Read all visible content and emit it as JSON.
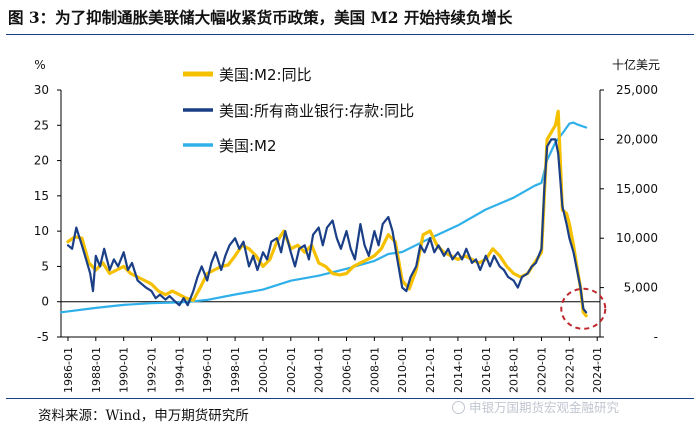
{
  "figure": {
    "title": "图 3：为了抑制通胀美联储大幅收紧货币政策，美国 M2 开始持续负增长",
    "source": "资料来源：Wind，申万期货研究所",
    "watermark": "申银万国期货宏观金融研究"
  },
  "chart_data": {
    "type": "line",
    "title": "",
    "x_range": [
      1985.5,
      2024.2
    ],
    "x_ticks": [
      "1986-01",
      "1988-01",
      "1990-01",
      "1992-01",
      "1994-01",
      "1996-01",
      "1998-01",
      "2000-01",
      "2002-01",
      "2004-01",
      "2006-01",
      "2008-01",
      "2010-01",
      "2012-01",
      "2014-01",
      "2016-01",
      "2018-01",
      "2020-01",
      "2022-01",
      "2024-01"
    ],
    "x_tick_years": [
      1986,
      1988,
      1990,
      1992,
      1994,
      1996,
      1998,
      2000,
      2002,
      2004,
      2006,
      2008,
      2010,
      2012,
      2014,
      2016,
      2018,
      2020,
      2022,
      2024
    ],
    "left_axis": {
      "unit_label": "%",
      "range": [
        -5,
        30
      ],
      "ticks": [
        -5,
        0,
        5,
        10,
        15,
        20,
        25,
        30
      ]
    },
    "right_axis": {
      "unit_label": "十亿美元",
      "range": [
        0,
        25000
      ],
      "ticks": [
        0,
        5000,
        10000,
        15000,
        20000,
        25000
      ],
      "tick_labels": [
        "-",
        "5,000",
        "10,000",
        "15,000",
        "20,000",
        "25,000"
      ]
    },
    "legend": {
      "position": "top-left"
    },
    "series": [
      {
        "name": "美国:M2:同比",
        "axis": "left",
        "color": "#f5c000",
        "width": 3.2,
        "points": [
          [
            1986.0,
            8.5
          ],
          [
            1986.5,
            9.2
          ],
          [
            1987.0,
            9.0
          ],
          [
            1987.5,
            5.5
          ],
          [
            1988.0,
            4.5
          ],
          [
            1988.5,
            5.5
          ],
          [
            1989.0,
            4.0
          ],
          [
            1989.5,
            4.5
          ],
          [
            1990.0,
            5.0
          ],
          [
            1990.5,
            4.0
          ],
          [
            1991.0,
            3.5
          ],
          [
            1991.5,
            3.0
          ],
          [
            1992.0,
            2.5
          ],
          [
            1992.5,
            1.5
          ],
          [
            1993.0,
            1.0
          ],
          [
            1993.5,
            1.5
          ],
          [
            1994.0,
            1.0
          ],
          [
            1994.5,
            0.5
          ],
          [
            1995.0,
            0.2
          ],
          [
            1995.5,
            2.0
          ],
          [
            1996.0,
            4.0
          ],
          [
            1996.5,
            4.5
          ],
          [
            1997.0,
            5.0
          ],
          [
            1997.5,
            5.2
          ],
          [
            1998.0,
            6.5
          ],
          [
            1998.5,
            8.0
          ],
          [
            1999.0,
            7.5
          ],
          [
            1999.5,
            6.5
          ],
          [
            2000.0,
            5.0
          ],
          [
            2000.5,
            6.0
          ],
          [
            2001.0,
            8.5
          ],
          [
            2001.5,
            10.0
          ],
          [
            2002.0,
            7.5
          ],
          [
            2002.5,
            8.0
          ],
          [
            2003.0,
            7.0
          ],
          [
            2003.5,
            8.0
          ],
          [
            2004.0,
            5.5
          ],
          [
            2004.5,
            5.0
          ],
          [
            2005.0,
            4.0
          ],
          [
            2005.5,
            3.8
          ],
          [
            2006.0,
            4.0
          ],
          [
            2006.5,
            5.0
          ],
          [
            2007.0,
            5.5
          ],
          [
            2007.5,
            6.0
          ],
          [
            2008.0,
            6.5
          ],
          [
            2008.5,
            7.5
          ],
          [
            2009.0,
            9.5
          ],
          [
            2009.5,
            8.5
          ],
          [
            2010.0,
            3.0
          ],
          [
            2010.5,
            1.8
          ],
          [
            2011.0,
            4.5
          ],
          [
            2011.5,
            9.5
          ],
          [
            2012.0,
            10.0
          ],
          [
            2012.5,
            8.0
          ],
          [
            2013.0,
            7.0
          ],
          [
            2013.5,
            6.5
          ],
          [
            2014.0,
            6.0
          ],
          [
            2014.5,
            6.5
          ],
          [
            2015.0,
            6.0
          ],
          [
            2015.5,
            5.5
          ],
          [
            2016.0,
            6.0
          ],
          [
            2016.5,
            7.5
          ],
          [
            2017.0,
            6.5
          ],
          [
            2017.5,
            5.0
          ],
          [
            2018.0,
            4.0
          ],
          [
            2018.5,
            3.5
          ],
          [
            2019.0,
            4.0
          ],
          [
            2019.5,
            5.5
          ],
          [
            2020.0,
            7.0
          ],
          [
            2020.2,
            15.0
          ],
          [
            2020.4,
            23.0
          ],
          [
            2020.7,
            24.0
          ],
          [
            2021.0,
            25.0
          ],
          [
            2021.2,
            27.0
          ],
          [
            2021.5,
            13.0
          ],
          [
            2021.8,
            12.5
          ],
          [
            2022.0,
            11.0
          ],
          [
            2022.3,
            8.0
          ],
          [
            2022.5,
            5.5
          ],
          [
            2022.8,
            2.0
          ],
          [
            2023.0,
            -1.5
          ],
          [
            2023.2,
            -2.0
          ]
        ]
      },
      {
        "name": "美国:所有商业银行:存款:同比",
        "axis": "left",
        "color": "#1a3f86",
        "width": 2.2,
        "points": [
          [
            1986.0,
            8.0
          ],
          [
            1986.3,
            7.5
          ],
          [
            1986.6,
            10.5
          ],
          [
            1987.0,
            8.0
          ],
          [
            1987.3,
            6.0
          ],
          [
            1987.6,
            4.0
          ],
          [
            1987.8,
            1.5
          ],
          [
            1988.0,
            6.5
          ],
          [
            1988.3,
            5.0
          ],
          [
            1988.6,
            7.5
          ],
          [
            1989.0,
            4.5
          ],
          [
            1989.3,
            6.0
          ],
          [
            1989.6,
            5.0
          ],
          [
            1990.0,
            7.0
          ],
          [
            1990.3,
            4.5
          ],
          [
            1990.6,
            5.5
          ],
          [
            1991.0,
            3.0
          ],
          [
            1991.3,
            2.5
          ],
          [
            1991.6,
            2.0
          ],
          [
            1992.0,
            1.5
          ],
          [
            1992.3,
            0.5
          ],
          [
            1992.6,
            1.0
          ],
          [
            1993.0,
            0.3
          ],
          [
            1993.3,
            0.8
          ],
          [
            1993.6,
            0.2
          ],
          [
            1994.0,
            -0.5
          ],
          [
            1994.3,
            0.5
          ],
          [
            1994.6,
            -0.5
          ],
          [
            1995.0,
            1.5
          ],
          [
            1995.3,
            3.5
          ],
          [
            1995.6,
            5.0
          ],
          [
            1996.0,
            3.0
          ],
          [
            1996.3,
            5.5
          ],
          [
            1996.6,
            7.0
          ],
          [
            1997.0,
            4.5
          ],
          [
            1997.3,
            6.5
          ],
          [
            1997.6,
            8.0
          ],
          [
            1998.0,
            9.0
          ],
          [
            1998.3,
            7.5
          ],
          [
            1998.6,
            8.5
          ],
          [
            1999.0,
            5.0
          ],
          [
            1999.3,
            6.5
          ],
          [
            1999.6,
            4.5
          ],
          [
            2000.0,
            7.0
          ],
          [
            2000.3,
            6.0
          ],
          [
            2000.6,
            8.5
          ],
          [
            2001.0,
            9.0
          ],
          [
            2001.3,
            7.0
          ],
          [
            2001.6,
            10.0
          ],
          [
            2002.0,
            7.0
          ],
          [
            2002.3,
            5.0
          ],
          [
            2002.6,
            7.5
          ],
          [
            2003.0,
            8.0
          ],
          [
            2003.3,
            6.0
          ],
          [
            2003.6,
            9.5
          ],
          [
            2004.0,
            10.5
          ],
          [
            2004.3,
            8.0
          ],
          [
            2004.6,
            10.5
          ],
          [
            2005.0,
            11.5
          ],
          [
            2005.3,
            9.0
          ],
          [
            2005.6,
            7.5
          ],
          [
            2006.0,
            10.0
          ],
          [
            2006.3,
            7.5
          ],
          [
            2006.6,
            6.0
          ],
          [
            2007.0,
            11.0
          ],
          [
            2007.3,
            8.0
          ],
          [
            2007.6,
            6.5
          ],
          [
            2008.0,
            10.0
          ],
          [
            2008.3,
            8.0
          ],
          [
            2008.6,
            11.0
          ],
          [
            2009.0,
            12.0
          ],
          [
            2009.3,
            10.0
          ],
          [
            2009.6,
            6.5
          ],
          [
            2010.0,
            2.0
          ],
          [
            2010.3,
            1.5
          ],
          [
            2010.6,
            3.5
          ],
          [
            2011.0,
            5.0
          ],
          [
            2011.3,
            8.0
          ],
          [
            2011.6,
            7.0
          ],
          [
            2012.0,
            9.0
          ],
          [
            2012.3,
            7.0
          ],
          [
            2012.6,
            8.0
          ],
          [
            2013.0,
            6.5
          ],
          [
            2013.3,
            7.5
          ],
          [
            2013.6,
            6.0
          ],
          [
            2014.0,
            7.0
          ],
          [
            2014.3,
            6.0
          ],
          [
            2014.6,
            7.5
          ],
          [
            2015.0,
            5.5
          ],
          [
            2015.3,
            6.0
          ],
          [
            2015.6,
            4.5
          ],
          [
            2016.0,
            6.5
          ],
          [
            2016.3,
            5.0
          ],
          [
            2016.6,
            6.5
          ],
          [
            2017.0,
            5.0
          ],
          [
            2017.3,
            4.5
          ],
          [
            2017.6,
            3.5
          ],
          [
            2018.0,
            3.0
          ],
          [
            2018.3,
            2.0
          ],
          [
            2018.6,
            3.5
          ],
          [
            2019.0,
            4.0
          ],
          [
            2019.3,
            5.0
          ],
          [
            2019.6,
            5.5
          ],
          [
            2020.0,
            7.5
          ],
          [
            2020.2,
            16.0
          ],
          [
            2020.4,
            22.0
          ],
          [
            2020.7,
            23.0
          ],
          [
            2021.0,
            23.0
          ],
          [
            2021.2,
            21.0
          ],
          [
            2021.5,
            13.5
          ],
          [
            2021.8,
            11.0
          ],
          [
            2022.0,
            9.0
          ],
          [
            2022.3,
            7.0
          ],
          [
            2022.5,
            5.0
          ],
          [
            2022.8,
            2.0
          ],
          [
            2023.0,
            -1.0
          ],
          [
            2023.2,
            -1.5
          ]
        ]
      },
      {
        "name": "美国:M2",
        "axis": "right",
        "color": "#2fb0ea",
        "width": 2.2,
        "points": [
          [
            1985.5,
            2500
          ],
          [
            1988.0,
            2950
          ],
          [
            1990.0,
            3250
          ],
          [
            1992.0,
            3420
          ],
          [
            1994.0,
            3500
          ],
          [
            1995.0,
            3600
          ],
          [
            1996.0,
            3750
          ],
          [
            1998.0,
            4300
          ],
          [
            2000.0,
            4800
          ],
          [
            2002.0,
            5700
          ],
          [
            2004.0,
            6200
          ],
          [
            2006.0,
            6900
          ],
          [
            2008.0,
            7700
          ],
          [
            2009.0,
            8400
          ],
          [
            2010.0,
            8600
          ],
          [
            2012.0,
            10000
          ],
          [
            2014.0,
            11300
          ],
          [
            2016.0,
            12900
          ],
          [
            2018.0,
            14100
          ],
          [
            2019.5,
            15300
          ],
          [
            2020.0,
            15600
          ],
          [
            2020.4,
            17900
          ],
          [
            2021.0,
            19700
          ],
          [
            2021.5,
            20600
          ],
          [
            2022.0,
            21600
          ],
          [
            2022.3,
            21700
          ],
          [
            2022.6,
            21500
          ],
          [
            2023.2,
            21200
          ]
        ]
      }
    ],
    "highlight": {
      "shape": "dashed-circle",
      "color": "#c0282d",
      "x": 2023.0,
      "y": -1.0
    }
  }
}
